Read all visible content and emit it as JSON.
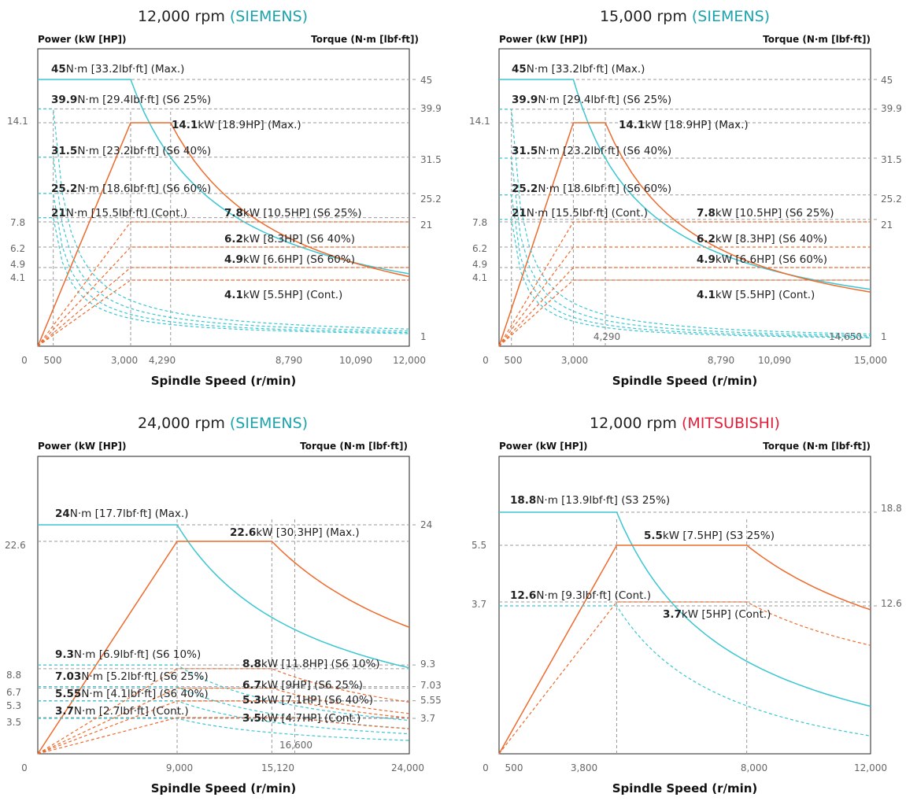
{
  "palette": {
    "torque": "#3bc6d2",
    "power": "#ee6a2c",
    "siemens": "#1aa3ad",
    "mitsubishi": "#e0203a"
  },
  "axis_headers": {
    "power": "Power (kW [HP])",
    "torque": "Torque (N·m [lbf·ft])",
    "speed": "Spindle Speed (r/min)"
  },
  "chart_data": [
    {
      "type": "line",
      "title_speed": "12,000 rpm",
      "title_brand": "(SIEMENS)",
      "xlim": [
        0,
        12000
      ],
      "x_ticks": [
        "0",
        "500",
        "3,000",
        "4,290",
        "8,790",
        "10,090",
        "12,000"
      ],
      "power_ticks": [
        "14.1",
        "7.8",
        "6.2",
        "4.9",
        "4.1"
      ],
      "torque_ticks": [
        "45",
        "39.9",
        "31.5",
        "25.2",
        "21",
        "1"
      ],
      "annotations": [
        {
          "bold": "45",
          "rest": "N·m [33.2lbf·ft] (Max.)"
        },
        {
          "bold": "39.9",
          "rest": "N·m [29.4lbf·ft] (S6 25%)"
        },
        {
          "bold": "14.1",
          "rest": "kW [18.9HP] (Max.)"
        },
        {
          "bold": "31.5",
          "rest": "N·m [23.2lbf·ft] (S6 40%)"
        },
        {
          "bold": "25.2",
          "rest": "N·m [18.6lbf·ft] (S6 60%)"
        },
        {
          "bold": "21",
          "rest": "N·m [15.5lbf·ft] (Cont.)"
        },
        {
          "bold": "7.8",
          "rest": "kW [10.5HP] (S6 25%)"
        },
        {
          "bold": "6.2",
          "rest": "kW [8.3HP] (S6 40%)"
        },
        {
          "bold": "4.9",
          "rest": "kW [6.6HP] (S6 60%)"
        },
        {
          "bold": "4.1",
          "rest": "kW [5.5HP] (Cont.)"
        }
      ],
      "series": [
        {
          "name": "Torque (Max.)",
          "kind": "torque",
          "value": 45,
          "corner": 3000
        },
        {
          "name": "Power (Max.)",
          "kind": "power",
          "value": 14.1,
          "knee": 3000,
          "corner": 4290
        },
        {
          "name": "Torque (S6 25%)",
          "kind": "torque",
          "value": 39.9,
          "corner": 500
        },
        {
          "name": "Torque (S6 40%)",
          "kind": "torque",
          "value": 31.5,
          "corner": 500
        },
        {
          "name": "Torque (S6 60%)",
          "kind": "torque",
          "value": 25.2,
          "corner": 500
        },
        {
          "name": "Torque (Cont.)",
          "kind": "torque",
          "value": 21,
          "corner": 500
        },
        {
          "name": "Power (S6 25%)",
          "kind": "power",
          "value": 7.8,
          "knee": 3000
        },
        {
          "name": "Power (S6 40%)",
          "kind": "power",
          "value": 6.2,
          "knee": 3000
        },
        {
          "name": "Power (S6 60%)",
          "kind": "power",
          "value": 4.9,
          "knee": 3000
        },
        {
          "name": "Power (Cont.)",
          "kind": "power",
          "value": 4.1,
          "knee": 3000
        }
      ]
    },
    {
      "type": "line",
      "title_speed": "15,000 rpm",
      "title_brand": "(SIEMENS)",
      "xlim": [
        0,
        15000
      ],
      "x_ticks": [
        "0",
        "500",
        "3,000",
        "4,290",
        "8,790",
        "10,090",
        "14,650",
        "15,000"
      ],
      "power_ticks": [
        "14.1",
        "7.8",
        "6.2",
        "4.9",
        "4.1"
      ],
      "torque_ticks": [
        "45",
        "39.9",
        "31.5",
        "25.2",
        "21",
        "1"
      ],
      "annotations": [
        {
          "bold": "45",
          "rest": "N·m [33.2lbf·ft] (Max.)"
        },
        {
          "bold": "39.9",
          "rest": "N·m [29.4lbf·ft] (S6 25%)"
        },
        {
          "bold": "14.1",
          "rest": "kW [18.9HP] (Max.)"
        },
        {
          "bold": "31.5",
          "rest": "N·m [23.2lbf·ft] (S6 40%)"
        },
        {
          "bold": "25.2",
          "rest": "N·m [18.6lbf·ft] (S6 60%)"
        },
        {
          "bold": "21",
          "rest": "N·m [15.5lbf·ft] (Cont.)"
        },
        {
          "bold": "7.8",
          "rest": "kW [10.5HP] (S6 25%)"
        },
        {
          "bold": "6.2",
          "rest": "kW [8.3HP] (S6 40%)"
        },
        {
          "bold": "4.9",
          "rest": "kW [6.6HP] (S6 60%)"
        },
        {
          "bold": "4.1",
          "rest": "kW [5.5HP] (Cont.)"
        }
      ],
      "series": [
        {
          "name": "Torque (Max.)",
          "kind": "torque",
          "value": 45,
          "corner": 3000
        },
        {
          "name": "Power (Max.)",
          "kind": "power",
          "value": 14.1,
          "knee": 3000,
          "corner": 4290
        },
        {
          "name": "Torque (S6 25%)",
          "kind": "torque",
          "value": 39.9,
          "corner": 500
        },
        {
          "name": "Torque (S6 40%)",
          "kind": "torque",
          "value": 31.5,
          "corner": 500
        },
        {
          "name": "Torque (S6 60%)",
          "kind": "torque",
          "value": 25.2,
          "corner": 500
        },
        {
          "name": "Torque (Cont.)",
          "kind": "torque",
          "value": 21,
          "corner": 500
        },
        {
          "name": "Power (S6 25%)",
          "kind": "power",
          "value": 7.8,
          "knee": 3000
        },
        {
          "name": "Power (S6 40%)",
          "kind": "power",
          "value": 6.2,
          "knee": 3000
        },
        {
          "name": "Power (S6 60%)",
          "kind": "power",
          "value": 4.9,
          "knee": 3000
        },
        {
          "name": "Power (Cont.)",
          "kind": "power",
          "value": 4.1,
          "knee": 3000
        }
      ]
    },
    {
      "type": "line",
      "title_speed": "24,000 rpm",
      "title_brand": "(SIEMENS)",
      "xlim": [
        0,
        24000
      ],
      "x_ticks": [
        "0",
        "9,000",
        "15,120",
        "16,600",
        "24,000"
      ],
      "power_ticks": [
        "22.6",
        "8.8",
        "6.7",
        "5.3",
        "3.5"
      ],
      "torque_ticks": [
        "24",
        "9.3",
        "7.03",
        "5.55",
        "3.7"
      ],
      "annotations": [
        {
          "bold": "24",
          "rest": "N·m [17.7lbf·ft] (Max.)"
        },
        {
          "bold": "22.6",
          "rest": "kW [30.3HP] (Max.)"
        },
        {
          "bold": "9.3",
          "rest": "N·m [6.9lbf·ft] (S6 10%)"
        },
        {
          "bold": "8.8",
          "rest": "kW [11.8HP] (S6 10%)"
        },
        {
          "bold": "7.03",
          "rest": "N·m [5.2lbf·ft] (S6 25%)"
        },
        {
          "bold": "6.7",
          "rest": "kW [9HP] (S6 25%)"
        },
        {
          "bold": "5.55",
          "rest": "N·m [4.1lbf·ft] (S6 40%)"
        },
        {
          "bold": "5.3",
          "rest": "kW [7.1HP] (S6 40%)"
        },
        {
          "bold": "3.7",
          "rest": "N·m [2.7lbf·ft] (Cont.)"
        },
        {
          "bold": "3.5",
          "rest": "kW [4.7HP] (Cont.)"
        }
      ],
      "series": [
        {
          "name": "Torque (Max.)",
          "kind": "torque",
          "value": 24,
          "corner": 9000
        },
        {
          "name": "Power (Max.)",
          "kind": "power",
          "value": 22.6,
          "knee": 9000,
          "corner": 15120
        },
        {
          "name": "Torque (S6 10%)",
          "kind": "torque",
          "value": 9.3,
          "corner": 9000
        },
        {
          "name": "Torque (S6 25%)",
          "kind": "torque",
          "value": 7.03,
          "corner": 9000
        },
        {
          "name": "Torque (S6 40%)",
          "kind": "torque",
          "value": 5.55,
          "corner": 9000
        },
        {
          "name": "Torque (Cont.)",
          "kind": "torque",
          "value": 3.7,
          "corner": 9000
        },
        {
          "name": "Power (S6 10%)",
          "kind": "power",
          "value": 8.8,
          "knee": 9000,
          "corner": 15120
        },
        {
          "name": "Power (S6 25%)",
          "kind": "power",
          "value": 6.7,
          "knee": 9000,
          "corner": 15120
        },
        {
          "name": "Power (S6 40%)",
          "kind": "power",
          "value": 5.3,
          "knee": 9000,
          "corner": 16600
        },
        {
          "name": "Power (Cont.)",
          "kind": "power",
          "value": 3.5,
          "knee": 9000,
          "corner": 16600
        }
      ]
    },
    {
      "type": "line",
      "title_speed": "12,000 rpm",
      "title_brand": "(MITSUBISHI)",
      "xlim": [
        0,
        12000
      ],
      "x_ticks": [
        "0",
        "500",
        "3,800",
        "8,000",
        "12,000"
      ],
      "power_ticks": [
        "5.5",
        "3.7"
      ],
      "torque_ticks": [
        "18.8",
        "12.6"
      ],
      "annotations": [
        {
          "bold": "18.8",
          "rest": "N·m [13.9lbf·ft] (S3 25%)"
        },
        {
          "bold": "5.5",
          "rest": "kW [7.5HP] (S3 25%)"
        },
        {
          "bold": "12.6",
          "rest": "N·m [9.3lbf·ft] (Cont.)"
        },
        {
          "bold": "3.7",
          "rest": "kW [5HP] (Cont.)"
        }
      ],
      "series": [
        {
          "name": "Torque (S3 25%)",
          "kind": "torque",
          "value": 18.8,
          "corner": 3800
        },
        {
          "name": "Power (S3 25%)",
          "kind": "power",
          "value": 5.5,
          "knee": 3800,
          "corner": 8000
        },
        {
          "name": "Torque (Cont.)",
          "kind": "torque",
          "value": 12.6,
          "corner": 3800
        },
        {
          "name": "Power (Cont.)",
          "kind": "power",
          "value": 3.7,
          "knee": 3800,
          "corner": 8000
        }
      ]
    }
  ]
}
